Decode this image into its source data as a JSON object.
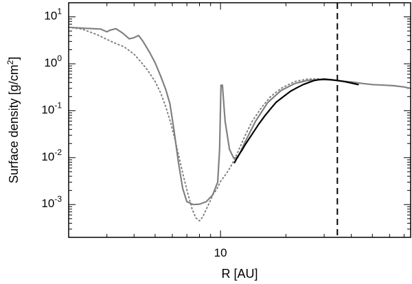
{
  "chart_data": {
    "type": "line",
    "title": "",
    "xlabel": "R [AU]",
    "ylabel": "Surface density [g/cm",
    "ylabel_sup": "2",
    "ylabel_close": "]",
    "x_scale": "log",
    "y_scale": "log",
    "xlim": [
      2.0,
      75.0
    ],
    "ylim": [
      0.0002,
      20
    ],
    "x_ticks": [
      {
        "value": 10,
        "label": "10"
      }
    ],
    "y_ticks": [
      {
        "value": 0.001,
        "base": "10",
        "exp": "-3"
      },
      {
        "value": 0.01,
        "base": "10",
        "exp": "-2"
      },
      {
        "value": 0.1,
        "base": "10",
        "exp": "-1"
      },
      {
        "value": 1,
        "base": "10",
        "exp": "0"
      },
      {
        "value": 10,
        "base": "10",
        "exp": "1"
      }
    ],
    "grid": false,
    "legend": "none",
    "vline_x": 34.5,
    "series": [
      {
        "style": "solid-gray",
        "color": "#808080",
        "x": [
          2.0,
          2.4,
          2.8,
          3.0,
          3.1,
          3.3,
          3.55,
          3.8,
          4.0,
          4.2,
          4.4,
          4.7,
          5.0,
          5.3,
          5.6,
          5.85,
          6.1,
          6.4,
          6.7,
          7.0,
          7.5,
          8.0,
          8.6,
          9.2,
          9.7,
          9.9,
          10.05,
          10.2,
          10.5,
          11.0,
          11.5,
          12.0,
          13.0,
          14.5,
          16.5,
          19.0,
          22.0,
          25.0,
          28.0,
          30.5,
          33.0,
          36.0,
          40.0,
          45.0,
          50.0,
          57.0,
          63.0,
          70.0,
          75.0
        ],
        "y": [
          6.0,
          5.7,
          5.5,
          4.8,
          5.2,
          5.6,
          4.5,
          3.4,
          3.6,
          4.0,
          3.0,
          1.8,
          1.05,
          0.55,
          0.28,
          0.14,
          0.04,
          0.008,
          0.0022,
          0.00115,
          0.001,
          0.00102,
          0.00115,
          0.0016,
          0.003,
          0.015,
          0.35,
          0.35,
          0.06,
          0.015,
          0.0098,
          0.01,
          0.022,
          0.06,
          0.15,
          0.27,
          0.38,
          0.44,
          0.46,
          0.46,
          0.45,
          0.43,
          0.41,
          0.38,
          0.36,
          0.35,
          0.34,
          0.32,
          0.3
        ]
      },
      {
        "style": "dotted-gray",
        "color": "#808080",
        "x": [
          2.0,
          2.3,
          2.7,
          3.0,
          3.3,
          3.6,
          4.0,
          4.3,
          4.6,
          5.0,
          5.3,
          5.6,
          5.9,
          6.2,
          6.5,
          6.8,
          7.1,
          7.4,
          7.7,
          8.0,
          8.3,
          8.6,
          8.9,
          9.2,
          9.6,
          10.0,
          10.5,
          11.0,
          11.5,
          12.0,
          13.0,
          14.0,
          15.5,
          17.0,
          19.0,
          22.0,
          25.0,
          28.0,
          31.0,
          33.0
        ],
        "y": [
          6.0,
          5.5,
          4.2,
          3.3,
          2.7,
          2.3,
          1.6,
          1.1,
          0.75,
          0.42,
          0.24,
          0.12,
          0.055,
          0.022,
          0.0085,
          0.0035,
          0.0016,
          0.0008,
          0.00052,
          0.00045,
          0.00055,
          0.0008,
          0.0011,
          0.0016,
          0.0021,
          0.0031,
          0.0042,
          0.0058,
          0.0085,
          0.013,
          0.03,
          0.06,
          0.12,
          0.2,
          0.3,
          0.42,
          0.47,
          0.48,
          0.46,
          0.45
        ]
      },
      {
        "style": "solid-black",
        "color": "#000000",
        "x": [
          11.6,
          12.0,
          12.5,
          13.0,
          14.0,
          15.0,
          16.0,
          17.0,
          18.0,
          19.5,
          21.0,
          22.5,
          24.0,
          25.5,
          27.0,
          28.5,
          30.0,
          32.0,
          34.5,
          37.0,
          40.0,
          43.0
        ],
        "y": [
          0.0078,
          0.0105,
          0.014,
          0.019,
          0.032,
          0.052,
          0.078,
          0.11,
          0.15,
          0.2,
          0.26,
          0.31,
          0.36,
          0.4,
          0.44,
          0.46,
          0.47,
          0.46,
          0.44,
          0.42,
          0.39,
          0.36
        ]
      }
    ]
  }
}
